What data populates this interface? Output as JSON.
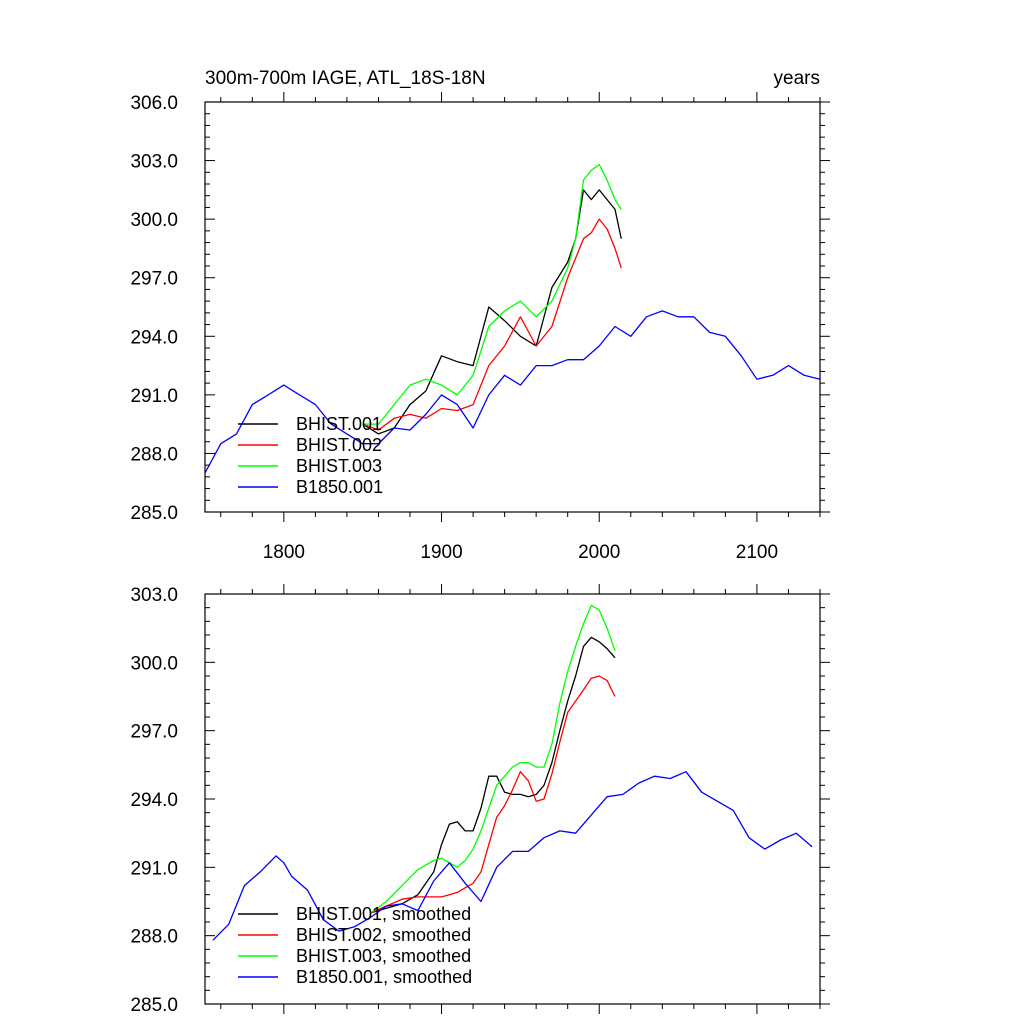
{
  "chart_data": [
    {
      "type": "line",
      "title": "300m-700m IAGE, ATL_18S-18N",
      "units_label": "years",
      "xlabel": "",
      "ylabel": "",
      "xlim": [
        1750,
        2140
      ],
      "ylim": [
        285.0,
        306.0
      ],
      "xticks": [
        1800,
        1900,
        2000,
        2100
      ],
      "xtick_labels": [
        "1800",
        "1900",
        "2000",
        "2100"
      ],
      "yticks": [
        285.0,
        288.0,
        291.0,
        294.0,
        297.0,
        300.0,
        303.0,
        306.0
      ],
      "ytick_labels": [
        "285.0",
        "288.0",
        "291.0",
        "294.0",
        "297.0",
        "300.0",
        "303.0",
        "306.0"
      ],
      "legend_position": "bottom-left",
      "series": [
        {
          "name": "BHIST.001",
          "color": "#000000",
          "x": [
            1850,
            1860,
            1870,
            1880,
            1890,
            1900,
            1910,
            1920,
            1930,
            1940,
            1950,
            1960,
            1970,
            1980,
            1985,
            1990,
            1995,
            2000,
            2005,
            2010,
            2014
          ],
          "values": [
            289.5,
            289.0,
            289.3,
            290.5,
            291.2,
            293.0,
            292.7,
            292.5,
            295.5,
            294.8,
            294.0,
            293.5,
            296.5,
            297.8,
            299.0,
            301.5,
            301.0,
            301.5,
            301.0,
            300.5,
            299.0
          ]
        },
        {
          "name": "BHIST.002",
          "color": "#ff0000",
          "x": [
            1850,
            1860,
            1870,
            1880,
            1890,
            1900,
            1910,
            1920,
            1930,
            1940,
            1950,
            1960,
            1970,
            1980,
            1985,
            1990,
            1995,
            2000,
            2005,
            2010,
            2014
          ],
          "values": [
            289.5,
            289.2,
            289.8,
            290.0,
            289.8,
            290.3,
            290.2,
            290.5,
            292.5,
            293.5,
            295.0,
            293.5,
            294.5,
            297.0,
            298.0,
            299.0,
            299.3,
            300.0,
            299.5,
            298.5,
            297.5
          ]
        },
        {
          "name": "BHIST.003",
          "color": "#00ff00",
          "x": [
            1850,
            1860,
            1870,
            1880,
            1890,
            1900,
            1910,
            1920,
            1930,
            1940,
            1950,
            1960,
            1970,
            1980,
            1985,
            1990,
            1995,
            2000,
            2005,
            2010,
            2014
          ],
          "values": [
            289.5,
            289.5,
            290.5,
            291.5,
            291.8,
            291.5,
            291.0,
            292.0,
            294.5,
            295.3,
            295.8,
            295.0,
            295.8,
            297.5,
            299.0,
            302.0,
            302.5,
            302.8,
            302.0,
            301.0,
            300.5
          ]
        },
        {
          "name": "B1850.001",
          "color": "#0000ff",
          "x": [
            1750,
            1760,
            1770,
            1780,
            1790,
            1800,
            1810,
            1820,
            1830,
            1840,
            1850,
            1860,
            1870,
            1880,
            1890,
            1900,
            1910,
            1920,
            1930,
            1940,
            1950,
            1960,
            1970,
            1980,
            1990,
            2000,
            2010,
            2020,
            2030,
            2040,
            2050,
            2060,
            2070,
            2080,
            2090,
            2100,
            2110,
            2120,
            2130,
            2140
          ],
          "values": [
            287.0,
            288.5,
            289.0,
            290.5,
            291.0,
            291.5,
            291.0,
            290.5,
            289.5,
            289.0,
            288.5,
            288.5,
            289.3,
            289.2,
            290.0,
            291.0,
            290.5,
            289.3,
            291.0,
            292.0,
            291.5,
            292.5,
            292.5,
            292.8,
            292.8,
            293.5,
            294.5,
            294.0,
            295.0,
            295.3,
            295.0,
            295.0,
            294.2,
            294.0,
            293.0,
            291.8,
            292.0,
            292.5,
            292.0,
            291.8
          ]
        }
      ]
    },
    {
      "type": "line",
      "title": "",
      "xlabel": "",
      "ylabel": "",
      "xlim": [
        1750,
        2140
      ],
      "ylim": [
        285.0,
        303.0
      ],
      "xticks": [
        1800,
        1900,
        2000,
        2100
      ],
      "yticks": [
        285.0,
        288.0,
        291.0,
        294.0,
        297.0,
        300.0,
        303.0
      ],
      "ytick_labels": [
        "285.0",
        "288.0",
        "291.0",
        "294.0",
        "297.0",
        "300.0",
        "303.0"
      ],
      "legend_position": "bottom-left",
      "series": [
        {
          "name": "BHIST.001, smoothed",
          "color": "#000000",
          "x": [
            1855,
            1865,
            1875,
            1885,
            1895,
            1900,
            1905,
            1910,
            1915,
            1920,
            1925,
            1930,
            1935,
            1940,
            1945,
            1950,
            1955,
            1960,
            1965,
            1970,
            1975,
            1980,
            1985,
            1990,
            1995,
            2000,
            2005,
            2010
          ],
          "values": [
            289.0,
            289.2,
            289.4,
            289.8,
            290.8,
            292.0,
            292.9,
            293.0,
            292.6,
            292.6,
            293.6,
            295.0,
            295.0,
            294.3,
            294.2,
            294.2,
            294.1,
            294.2,
            294.6,
            295.6,
            297.0,
            298.3,
            299.4,
            300.7,
            301.1,
            300.9,
            300.6,
            300.2
          ]
        },
        {
          "name": "BHIST.002, smoothed",
          "color": "#ff0000",
          "x": [
            1855,
            1865,
            1875,
            1885,
            1895,
            1900,
            1905,
            1910,
            1915,
            1920,
            1925,
            1930,
            1935,
            1940,
            1945,
            1950,
            1955,
            1960,
            1965,
            1970,
            1975,
            1980,
            1985,
            1990,
            1995,
            2000,
            2005,
            2010
          ],
          "values": [
            289.0,
            289.3,
            289.6,
            289.7,
            289.7,
            289.7,
            289.8,
            289.9,
            290.1,
            290.3,
            290.8,
            292.0,
            293.2,
            293.7,
            294.4,
            295.2,
            294.8,
            293.9,
            294.0,
            295.1,
            296.5,
            297.8,
            298.3,
            298.8,
            299.3,
            299.4,
            299.2,
            298.5
          ]
        },
        {
          "name": "BHIST.003, smoothed",
          "color": "#00ff00",
          "x": [
            1855,
            1865,
            1875,
            1885,
            1895,
            1900,
            1905,
            1910,
            1915,
            1920,
            1925,
            1930,
            1935,
            1940,
            1945,
            1950,
            1955,
            1960,
            1965,
            1970,
            1975,
            1980,
            1985,
            1990,
            1995,
            2000,
            2005,
            2010
          ],
          "values": [
            289.0,
            289.5,
            290.2,
            290.9,
            291.3,
            291.4,
            291.2,
            291.0,
            291.3,
            291.8,
            292.6,
            293.6,
            294.6,
            295.0,
            295.4,
            295.6,
            295.6,
            295.4,
            295.4,
            296.4,
            298.2,
            299.6,
            300.7,
            301.7,
            302.5,
            302.3,
            301.5,
            300.5
          ]
        },
        {
          "name": "B1850.001, smoothed",
          "color": "#0000ff",
          "x": [
            1755,
            1765,
            1775,
            1785,
            1795,
            1800,
            1805,
            1815,
            1825,
            1835,
            1845,
            1855,
            1865,
            1875,
            1885,
            1895,
            1905,
            1915,
            1925,
            1935,
            1945,
            1955,
            1965,
            1975,
            1985,
            1995,
            2005,
            2015,
            2025,
            2035,
            2045,
            2055,
            2065,
            2075,
            2085,
            2095,
            2105,
            2115,
            2125,
            2135
          ],
          "values": [
            287.8,
            288.5,
            290.2,
            290.8,
            291.5,
            291.2,
            290.6,
            290.0,
            288.7,
            288.2,
            288.4,
            288.8,
            289.3,
            289.4,
            289.1,
            290.4,
            291.2,
            290.3,
            289.5,
            291.0,
            291.7,
            291.7,
            292.3,
            292.6,
            292.5,
            293.3,
            294.1,
            294.2,
            294.7,
            295.0,
            294.9,
            295.2,
            294.3,
            293.9,
            293.5,
            292.3,
            291.8,
            292.2,
            292.5,
            291.9
          ]
        }
      ]
    }
  ]
}
